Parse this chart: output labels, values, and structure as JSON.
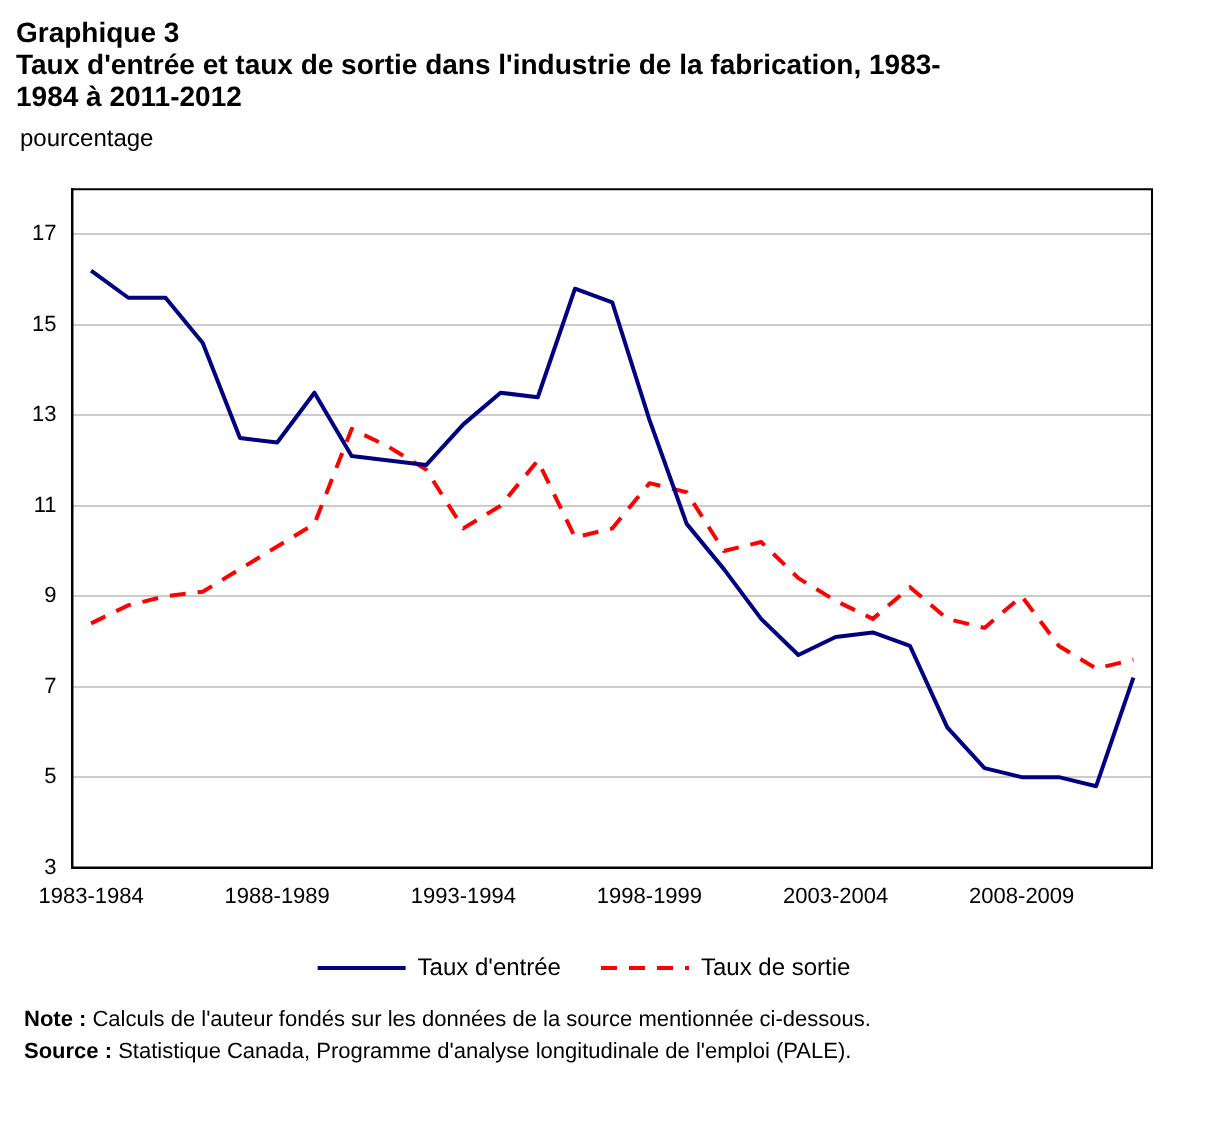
{
  "chart_data": {
    "type": "line",
    "title": "Graphique 3",
    "subtitle": "Taux d'entrée et taux de sortie dans l'industrie de la fabrication, 1983-1984 à 2011-2012",
    "ylabel": "pourcentage",
    "categories": [
      "1983-1984",
      null,
      null,
      null,
      null,
      "1988-1989",
      null,
      null,
      null,
      null,
      "1993-1994",
      null,
      null,
      null,
      null,
      "1998-1999",
      null,
      null,
      null,
      null,
      "2003-2004",
      null,
      null,
      null,
      null,
      "2008-2009",
      null,
      null,
      null
    ],
    "series": [
      {
        "name": "Taux d'entrée",
        "color": "#000080",
        "line_style": "solid",
        "values": [
          16.2,
          15.6,
          15.6,
          14.6,
          12.5,
          12.4,
          13.5,
          12.1,
          12.0,
          11.9,
          12.8,
          13.5,
          13.4,
          15.8,
          15.5,
          12.9,
          10.6,
          9.6,
          8.5,
          7.7,
          8.1,
          8.2,
          7.9,
          6.1,
          5.2,
          5.0,
          5.0,
          4.8,
          7.2
        ]
      },
      {
        "name": "Taux de sortie",
        "color": "#ff0000",
        "line_style": "dashed",
        "values": [
          8.4,
          8.8,
          9.0,
          9.1,
          9.6,
          10.1,
          10.6,
          12.7,
          12.3,
          11.8,
          10.5,
          11.0,
          12.0,
          10.3,
          10.5,
          11.5,
          11.3,
          10.0,
          10.2,
          9.4,
          8.9,
          8.5,
          9.2,
          8.5,
          8.3,
          9.0,
          7.9,
          7.4,
          7.6
        ]
      }
    ],
    "ylim": [
      3,
      18
    ],
    "yticks": [
      3,
      5,
      7,
      9,
      11,
      13,
      15,
      17
    ],
    "grid": "y",
    "legend": "bottom",
    "marker": "none",
    "annotations": [
      "Note : Calculs de l'auteur fondés sur les données de la source mentionnée ci-dessous.",
      "Source : Statistique Canada, Programme d'analyse longitudinale de l'emploi (PALE)."
    ]
  }
}
